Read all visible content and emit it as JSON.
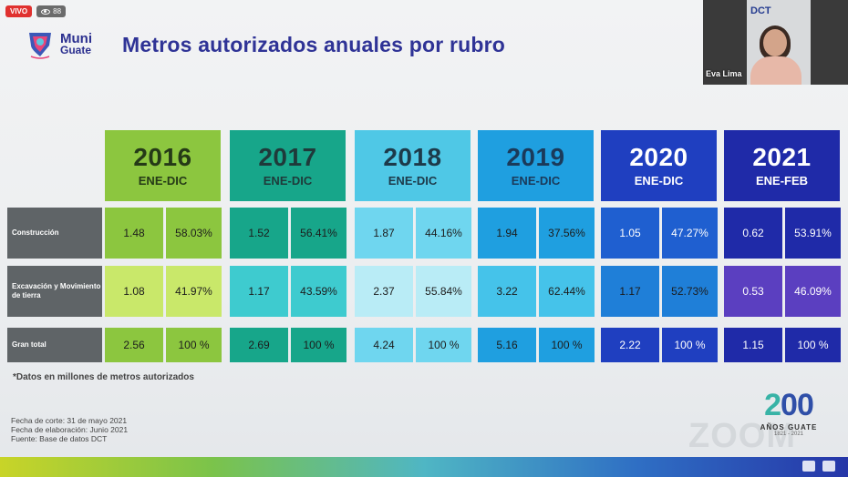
{
  "live": {
    "badge": "VIVO",
    "viewers": "88"
  },
  "logo": {
    "line1": "Muni",
    "line2": "Guate"
  },
  "title": "Metros autorizados anuales por rubro",
  "video": {
    "name": "Eva Lima",
    "brand": "DCT"
  },
  "years": [
    {
      "year": "2016",
      "period": "ENE-DIC"
    },
    {
      "year": "2017",
      "period": "ENE-DIC"
    },
    {
      "year": "2018",
      "period": "ENE-DIC"
    },
    {
      "year": "2019",
      "period": "ENE-DIC"
    },
    {
      "year": "2020",
      "period": "ENE-DIC"
    },
    {
      "year": "2021",
      "period": "ENE-FEB"
    }
  ],
  "rows": [
    {
      "label": "Construcción",
      "cells": [
        "1.48",
        "58.03%",
        "1.52",
        "56.41%",
        "1.87",
        "44.16%",
        "1.94",
        "37.56%",
        "1.05",
        "47.27%",
        "0.62",
        "53.91%"
      ]
    },
    {
      "label": "Excavación y Movimiento de tierra",
      "cells": [
        "1.08",
        "41.97%",
        "1.17",
        "43.59%",
        "2.37",
        "55.84%",
        "3.22",
        "62.44%",
        "1.17",
        "52.73%",
        "0.53",
        "46.09%"
      ]
    },
    {
      "label": "Gran total",
      "cells": [
        "2.56",
        "100 %",
        "2.69",
        "100 %",
        "4.24",
        "100 %",
        "5.16",
        "100 %",
        "2.22",
        "100 %",
        "1.15",
        "100 %"
      ]
    }
  ],
  "footnote": "*Datos en millones de metros autorizados",
  "meta": {
    "line1": "Fecha de corte: 31 de mayo 2021",
    "line2": "Fecha de elaboración: Junio 2021",
    "line3": "Fuente: Base de datos DCT"
  },
  "anniversary": {
    "big_a": "2",
    "big_b": "00",
    "sub": "AÑOS GUATE",
    "years": "1821 - 2021"
  },
  "watermark": "ZOOM",
  "colors": {
    "year_bg": [
      "#8cc63f",
      "#17a68a",
      "#4fc8e6",
      "#1f9fe0",
      "#1f3fc0",
      "#1f2aa8"
    ],
    "year_fg": [
      "#253a17",
      "#1f3a3a",
      "#1d3a4a",
      "#1b3a5a",
      "#ffffff",
      "#ffffff"
    ],
    "row_bg": [
      [
        "#8cc63f",
        "#17a68a",
        "#6fd6ef",
        "#1f9fe0",
        "#1f5fd0",
        "#1f2aa8"
      ],
      [
        "#c9e86a",
        "#3ecbcf",
        "#b9ecf6",
        "#45c3ea",
        "#1f7fd8",
        "#5b3fc0"
      ],
      [
        "#8cc63f",
        "#17a68a",
        "#6fd6ef",
        "#1f9fe0",
        "#1f3fc0",
        "#1f2aa8"
      ]
    ],
    "row_fg": [
      [
        "#1c1c1c",
        "#1c1c1c",
        "#1c1c1c",
        "#1c1c1c",
        "#ffffff",
        "#ffffff"
      ],
      [
        "#1c1c1c",
        "#1c1c1c",
        "#1c1c1c",
        "#1c1c1c",
        "#1c1c1c",
        "#ffffff"
      ],
      [
        "#1c1c1c",
        "#1c1c1c",
        "#1c1c1c",
        "#1c1c1c",
        "#ffffff",
        "#ffffff"
      ]
    ]
  }
}
